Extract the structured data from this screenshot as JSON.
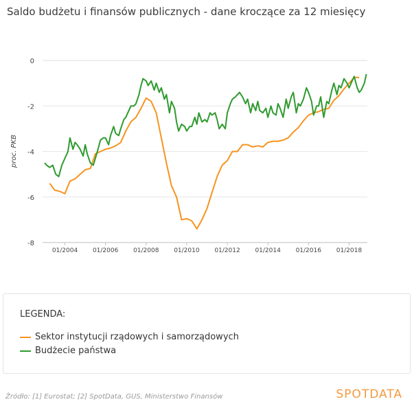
{
  "title": "Saldo budżetu i finansów publicznych - dane kroczące za 12 miesięcy",
  "legend": {
    "title": "LEGENDA:",
    "items": [
      {
        "label": "Sektor instytucji rządowych i samorządowych",
        "color": "#f7931e"
      },
      {
        "label": "Budżecie państwa",
        "color": "#2e9a2e"
      }
    ]
  },
  "source": "Źródło: [1] Eurostat; [2] SpotData, GUS, Ministerstwo Finansów",
  "brand": "SPOTDATA",
  "chart_data": {
    "type": "line",
    "ylabel": "proc. PKB",
    "xlabel": "",
    "ylim": [
      -8,
      0
    ],
    "xlim": [
      2002.9,
      2018.9
    ],
    "yticks": [
      0,
      -2,
      -4,
      -6,
      -8
    ],
    "xticks": [
      {
        "value": 2004,
        "label": "01/2004"
      },
      {
        "value": 2006,
        "label": "01/2006"
      },
      {
        "value": 2008,
        "label": "01/2008"
      },
      {
        "value": 2010,
        "label": "01/2010"
      },
      {
        "value": 2012,
        "label": "01/2012"
      },
      {
        "value": 2014,
        "label": "01/2014"
      },
      {
        "value": 2016,
        "label": "01/2016"
      },
      {
        "value": 2018,
        "label": "01/2018"
      }
    ],
    "grid": true,
    "series": [
      {
        "name": "Sektor instytucji rządowych i samorządowych",
        "color": "#f7931e",
        "x": [
          2003.25,
          2003.5,
          2003.75,
          2004.0,
          2004.25,
          2004.5,
          2004.75,
          2005.0,
          2005.25,
          2005.5,
          2005.75,
          2006.0,
          2006.25,
          2006.5,
          2006.75,
          2007.0,
          2007.25,
          2007.5,
          2007.75,
          2008.0,
          2008.25,
          2008.5,
          2008.75,
          2009.0,
          2009.25,
          2009.5,
          2009.75,
          2010.0,
          2010.25,
          2010.5,
          2010.75,
          2011.0,
          2011.25,
          2011.5,
          2011.75,
          2012.0,
          2012.25,
          2012.5,
          2012.75,
          2013.0,
          2013.25,
          2013.5,
          2013.75,
          2014.0,
          2014.25,
          2014.5,
          2014.75,
          2015.0,
          2015.25,
          2015.5,
          2015.75,
          2016.0,
          2016.25,
          2016.5,
          2016.75,
          2017.0,
          2017.25,
          2017.5,
          2017.75,
          2018.0,
          2018.25,
          2018.5
        ],
        "y": [
          -5.4,
          -5.7,
          -5.75,
          -5.85,
          -5.3,
          -5.2,
          -5.0,
          -4.8,
          -4.75,
          -4.1,
          -4.0,
          -3.9,
          -3.85,
          -3.75,
          -3.6,
          -3.1,
          -2.7,
          -2.5,
          -2.1,
          -1.65,
          -1.8,
          -2.3,
          -3.4,
          -4.5,
          -5.5,
          -6.0,
          -7.0,
          -6.95,
          -7.05,
          -7.4,
          -7.0,
          -6.5,
          -5.8,
          -5.1,
          -4.6,
          -4.4,
          -4.0,
          -4.0,
          -3.7,
          -3.7,
          -3.8,
          -3.75,
          -3.8,
          -3.6,
          -3.55,
          -3.55,
          -3.5,
          -3.4,
          -3.15,
          -2.95,
          -2.65,
          -2.4,
          -2.3,
          -2.25,
          -2.15,
          -2.1,
          -1.75,
          -1.55,
          -1.25,
          -1.0,
          -0.75,
          -0.75
        ]
      },
      {
        "name": "Budżecie państwa",
        "color": "#2e9a2e",
        "x": [
          2003.0,
          2003.1,
          2003.25,
          2003.4,
          2003.55,
          2003.7,
          2003.85,
          2004.0,
          2004.15,
          2004.25,
          2004.4,
          2004.5,
          2004.6,
          2004.75,
          2004.9,
          2005.0,
          2005.1,
          2005.25,
          2005.4,
          2005.5,
          2005.6,
          2005.75,
          2005.9,
          2006.0,
          2006.15,
          2006.25,
          2006.4,
          2006.5,
          2006.65,
          2006.75,
          2006.9,
          2007.0,
          2007.1,
          2007.25,
          2007.4,
          2007.5,
          2007.65,
          2007.75,
          2007.85,
          2008.0,
          2008.1,
          2008.25,
          2008.4,
          2008.5,
          2008.65,
          2008.75,
          2008.9,
          2009.0,
          2009.15,
          2009.25,
          2009.4,
          2009.5,
          2009.6,
          2009.75,
          2009.9,
          2010.0,
          2010.15,
          2010.25,
          2010.4,
          2010.5,
          2010.6,
          2010.75,
          2010.9,
          2011.0,
          2011.15,
          2011.25,
          2011.4,
          2011.5,
          2011.6,
          2011.75,
          2011.9,
          2012.0,
          2012.15,
          2012.25,
          2012.4,
          2012.5,
          2012.6,
          2012.75,
          2012.9,
          2013.0,
          2013.15,
          2013.25,
          2013.4,
          2013.5,
          2013.6,
          2013.75,
          2013.9,
          2014.0,
          2014.15,
          2014.25,
          2014.4,
          2014.5,
          2014.6,
          2014.75,
          2014.9,
          2015.0,
          2015.15,
          2015.25,
          2015.4,
          2015.5,
          2015.6,
          2015.75,
          2015.9,
          2016.0,
          2016.15,
          2016.25,
          2016.4,
          2016.5,
          2016.6,
          2016.75,
          2016.9,
          2017.0,
          2017.15,
          2017.25,
          2017.4,
          2017.5,
          2017.6,
          2017.75,
          2017.9,
          2018.0,
          2018.15,
          2018.25,
          2018.4,
          2018.5,
          2018.6,
          2018.75,
          2018.85
        ],
        "y": [
          -4.5,
          -4.6,
          -4.7,
          -4.6,
          -5.0,
          -5.1,
          -4.6,
          -4.3,
          -4.0,
          -3.4,
          -3.9,
          -3.6,
          -3.7,
          -3.9,
          -4.2,
          -3.7,
          -4.1,
          -4.5,
          -4.6,
          -4.3,
          -4.0,
          -3.5,
          -3.4,
          -3.4,
          -3.7,
          -3.3,
          -2.9,
          -3.2,
          -3.3,
          -3.0,
          -2.6,
          -2.5,
          -2.3,
          -2.0,
          -2.0,
          -1.9,
          -1.5,
          -1.1,
          -0.8,
          -0.9,
          -1.1,
          -0.9,
          -1.3,
          -1.0,
          -1.4,
          -1.2,
          -1.7,
          -1.5,
          -2.3,
          -1.8,
          -2.1,
          -2.7,
          -3.1,
          -2.8,
          -2.9,
          -3.1,
          -2.9,
          -2.9,
          -2.5,
          -2.8,
          -2.3,
          -2.7,
          -2.6,
          -2.7,
          -2.3,
          -2.4,
          -2.3,
          -2.6,
          -3.0,
          -2.8,
          -3.0,
          -2.3,
          -1.9,
          -1.7,
          -1.6,
          -1.5,
          -1.4,
          -1.6,
          -1.9,
          -1.7,
          -2.3,
          -1.9,
          -2.2,
          -1.8,
          -2.2,
          -2.3,
          -2.1,
          -2.5,
          -2.0,
          -2.3,
          -2.4,
          -1.9,
          -2.1,
          -2.5,
          -1.7,
          -2.1,
          -1.6,
          -1.4,
          -2.3,
          -1.9,
          -2.0,
          -1.7,
          -1.2,
          -1.4,
          -1.8,
          -2.4,
          -2.0,
          -2.0,
          -1.6,
          -2.5,
          -1.8,
          -1.9,
          -1.3,
          -1.0,
          -1.5,
          -1.1,
          -1.2,
          -0.8,
          -1.0,
          -1.2,
          -0.9,
          -0.7,
          -1.2,
          -1.4,
          -1.3,
          -1.0,
          -0.6
        ]
      }
    ]
  }
}
